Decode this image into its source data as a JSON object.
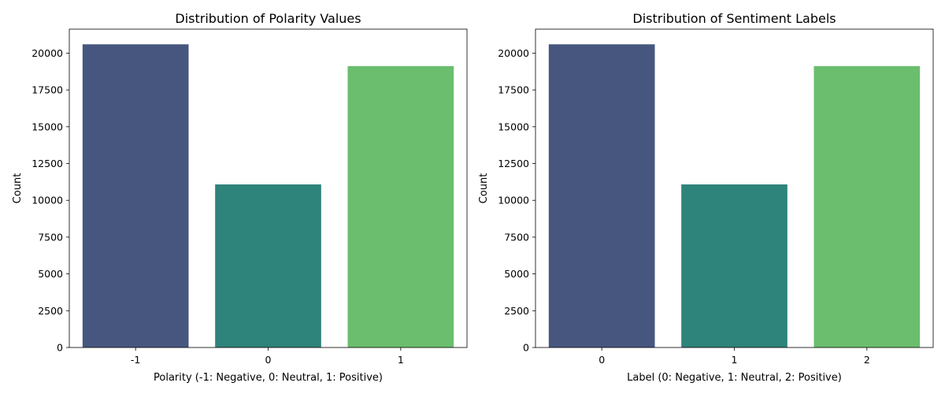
{
  "chart_data": [
    {
      "type": "bar",
      "title": "Distribution of Polarity Values",
      "xlabel": "Polarity (-1: Negative, 0: Neutral, 1: Positive)",
      "ylabel": "Count",
      "categories": [
        "-1",
        "0",
        "1"
      ],
      "values": [
        20600,
        11080,
        19120
      ],
      "colors": [
        "#46567f",
        "#2e837b",
        "#6abe6d"
      ],
      "ylim": [
        0,
        21630
      ],
      "yticks": [
        0,
        2500,
        5000,
        7500,
        10000,
        12500,
        15000,
        17500,
        20000
      ],
      "grid": false,
      "legend": "none"
    },
    {
      "type": "bar",
      "title": "Distribution of Sentiment Labels",
      "xlabel": "Label (0: Negative, 1: Neutral, 2: Positive)",
      "ylabel": "Count",
      "categories": [
        "0",
        "1",
        "2"
      ],
      "values": [
        20600,
        11080,
        19120
      ],
      "colors": [
        "#46567f",
        "#2e837b",
        "#6abe6d"
      ],
      "ylim": [
        0,
        21630
      ],
      "yticks": [
        0,
        2500,
        5000,
        7500,
        10000,
        12500,
        15000,
        17500,
        20000
      ],
      "grid": false,
      "legend": "none"
    }
  ]
}
